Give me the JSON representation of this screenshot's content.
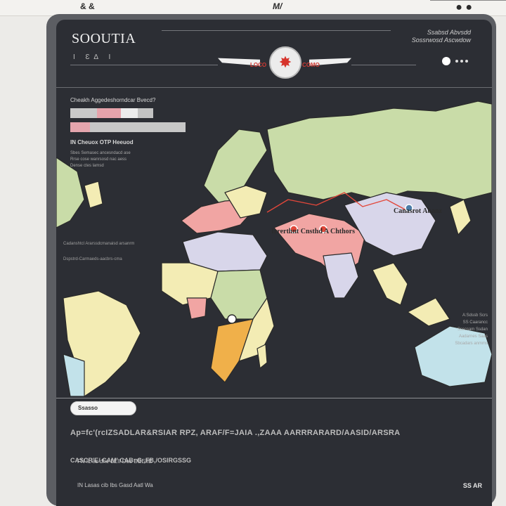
{
  "window": {
    "controls_left": "& &",
    "controls_mid": "M/ ",
    "controls_right": "● ●"
  },
  "header": {
    "brand": "SOOUTIA",
    "brand_sub": "I  Ɛ∆  I",
    "emblem_left_tag": "LOCO",
    "emblem_right_tag": "COMO",
    "top_right_text": "Ssabsd Abvsdd Sossrwosd Ascwdow",
    "emblem_icon": "star-icon"
  },
  "left_panel": {
    "heading": "Cheakh Aggedeshorndcar Bvecd?",
    "table_colors": [
      "#c9c9c9",
      "#e6a3ab",
      "#ececec",
      "#c3c3c3"
    ],
    "progress": 0.17,
    "subheading": "IN Cheuox OTP Heeuod",
    "lines": [
      "Sbes Semasec ancesndacd ase",
      "Rrse cose wanrsosd nac aess",
      "Dense ctes lamsd"
    ],
    "notes": [
      "Cadanshtcl Ararssdcmanaisd arsanrm",
      "Dspstrd-Carmaeds-aacbrs-cma"
    ]
  },
  "map": {
    "title": "Irrerthnt Cnsthd A Chthors",
    "region_label": "Canasrot Abanz",
    "right_list": [
      "A:Sdssb Scrs",
      "SS Caarancc",
      "Ssscsam Ssdan",
      "Aadarnes Saas",
      "Sbcadars anmms"
    ],
    "colors": {
      "land_green": "#c9dca8",
      "land_yellow": "#f3ecb4",
      "land_pink": "#f1a5a3",
      "land_lavender": "#d8d6ea",
      "land_orange": "#f0b04a",
      "land_blue": "#c2e2ea",
      "route": "#e2473a"
    }
  },
  "bottom": {
    "search_label": "Ssasso",
    "paragraph": "Ap=fc'(rcIZSADLAR&RSIAR RPZ, ARAF/F=JAIA .,ZAAA AARRRARARD/AASID/ARSRA",
    "paragraph2": "CASCR'E/ CAM' CAB=G ,FB,/OSIRGSSG",
    "footer_left": "FN IL'es dhe LEII Des DEEIIE",
    "footer_left2": "IN Lasas cib Ibs Gasd Aatl Wa",
    "footer_right": "SS AR"
  }
}
